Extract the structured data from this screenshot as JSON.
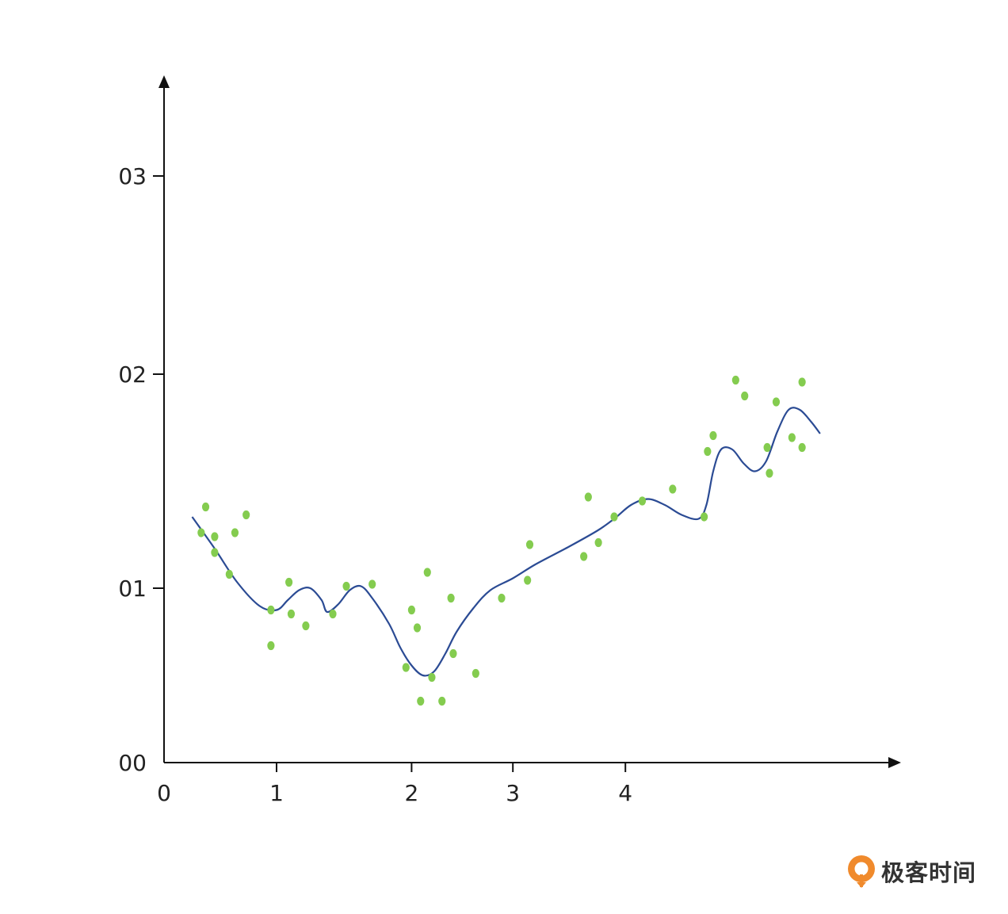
{
  "chart_data": {
    "type": "scatter",
    "title": "",
    "xlabel": "",
    "ylabel": "",
    "xlim": [
      0,
      6.4
    ],
    "ylim": [
      0,
      3.5
    ],
    "x_ticks": [
      {
        "value": 0,
        "label": "0"
      },
      {
        "value": 1,
        "label": "1"
      },
      {
        "value": 2.2,
        "label": "2"
      },
      {
        "value": 3.1,
        "label": "3"
      },
      {
        "value": 4.1,
        "label": "4"
      }
    ],
    "y_ticks": [
      {
        "value": 0,
        "label": "00"
      },
      {
        "value": 0.88,
        "label": "01"
      },
      {
        "value": 1.96,
        "label": "02"
      },
      {
        "value": 2.96,
        "label": "03"
      }
    ],
    "points": [
      [
        0.33,
        1.16
      ],
      [
        0.37,
        1.29
      ],
      [
        0.45,
        1.14
      ],
      [
        0.45,
        1.06
      ],
      [
        0.58,
        0.95
      ],
      [
        0.63,
        1.16
      ],
      [
        0.73,
        1.25
      ],
      [
        0.95,
        0.77
      ],
      [
        0.95,
        0.59
      ],
      [
        1.11,
        0.91
      ],
      [
        1.13,
        0.75
      ],
      [
        1.26,
        0.69
      ],
      [
        1.5,
        0.75
      ],
      [
        1.62,
        0.89
      ],
      [
        1.85,
        0.9
      ],
      [
        2.15,
        0.48
      ],
      [
        2.2,
        0.77
      ],
      [
        2.25,
        0.68
      ],
      [
        2.28,
        0.31
      ],
      [
        2.34,
        0.96
      ],
      [
        2.38,
        0.43
      ],
      [
        2.47,
        0.31
      ],
      [
        2.55,
        0.83
      ],
      [
        2.57,
        0.55
      ],
      [
        2.77,
        0.45
      ],
      [
        3.0,
        0.83
      ],
      [
        3.23,
        0.92
      ],
      [
        3.25,
        1.1
      ],
      [
        3.73,
        1.04
      ],
      [
        3.77,
        1.34
      ],
      [
        3.86,
        1.11
      ],
      [
        4.0,
        1.24
      ],
      [
        4.25,
        1.32
      ],
      [
        4.52,
        1.38
      ],
      [
        4.8,
        1.24
      ],
      [
        4.83,
        1.57
      ],
      [
        4.88,
        1.65
      ],
      [
        5.08,
        1.93
      ],
      [
        5.16,
        1.85
      ],
      [
        5.36,
        1.59
      ],
      [
        5.38,
        1.46
      ],
      [
        5.44,
        1.82
      ],
      [
        5.58,
        1.64
      ],
      [
        5.67,
        1.92
      ],
      [
        5.67,
        1.59
      ]
    ],
    "curve": [
      [
        0.25,
        1.24
      ],
      [
        0.45,
        1.08
      ],
      [
        0.65,
        0.91
      ],
      [
        0.85,
        0.79
      ],
      [
        1.0,
        0.77
      ],
      [
        1.1,
        0.82
      ],
      [
        1.2,
        0.87
      ],
      [
        1.3,
        0.88
      ],
      [
        1.4,
        0.82
      ],
      [
        1.45,
        0.76
      ],
      [
        1.55,
        0.8
      ],
      [
        1.65,
        0.87
      ],
      [
        1.75,
        0.89
      ],
      [
        1.85,
        0.83
      ],
      [
        2.0,
        0.7
      ],
      [
        2.1,
        0.58
      ],
      [
        2.2,
        0.49
      ],
      [
        2.3,
        0.44
      ],
      [
        2.4,
        0.46
      ],
      [
        2.5,
        0.55
      ],
      [
        2.6,
        0.66
      ],
      [
        2.75,
        0.78
      ],
      [
        2.9,
        0.87
      ],
      [
        3.1,
        0.93
      ],
      [
        3.3,
        1.0
      ],
      [
        3.6,
        1.09
      ],
      [
        3.85,
        1.17
      ],
      [
        4.0,
        1.23
      ],
      [
        4.15,
        1.3
      ],
      [
        4.3,
        1.33
      ],
      [
        4.45,
        1.3
      ],
      [
        4.6,
        1.25
      ],
      [
        4.75,
        1.23
      ],
      [
        4.82,
        1.3
      ],
      [
        4.88,
        1.47
      ],
      [
        4.95,
        1.58
      ],
      [
        5.05,
        1.58
      ],
      [
        5.15,
        1.51
      ],
      [
        5.25,
        1.47
      ],
      [
        5.35,
        1.52
      ],
      [
        5.45,
        1.67
      ],
      [
        5.55,
        1.78
      ],
      [
        5.65,
        1.78
      ],
      [
        5.75,
        1.72
      ],
      [
        5.83,
        1.66
      ]
    ],
    "point_color": "#84cc4f",
    "line_color": "#2b4b94",
    "axis_color": "#111111",
    "grid": false,
    "legend": "none"
  },
  "watermark": {
    "text": "极客时间",
    "logo_color": "#f08a2c"
  }
}
